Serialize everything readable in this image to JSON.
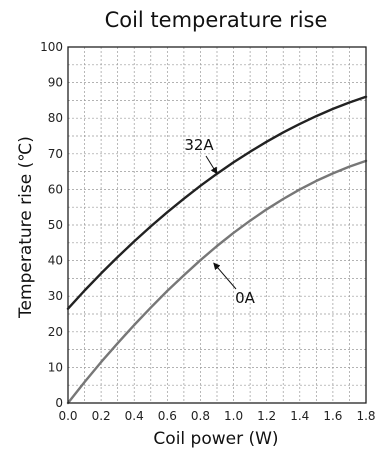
{
  "chart_data": {
    "type": "line",
    "title": "Coil temperature rise",
    "xlabel": "Coil power (W)",
    "ylabel": "Temperature rise (℃)",
    "xlim": [
      0.0,
      1.8
    ],
    "ylim": [
      0,
      100
    ],
    "x_ticks": [
      "0.0",
      "0.2",
      "0.4",
      "0.6",
      "0.8",
      "1.0",
      "1.2",
      "1.4",
      "1.6",
      "1.8"
    ],
    "y_ticks": [
      "0",
      "10",
      "20",
      "30",
      "40",
      "50",
      "60",
      "70",
      "80",
      "90",
      "100"
    ],
    "grid": true,
    "series": [
      {
        "name": "32A",
        "color": "#222222",
        "x": [
          0.0,
          0.1,
          0.2,
          0.3,
          0.4,
          0.5,
          0.6,
          0.7,
          0.8,
          0.9,
          1.0,
          1.1,
          1.2,
          1.3,
          1.4,
          1.5,
          1.6,
          1.7,
          1.8
        ],
        "y": [
          26.5,
          31.6,
          36.4,
          41.0,
          45.4,
          49.6,
          53.6,
          57.4,
          61.0,
          64.4,
          67.6,
          70.6,
          73.4,
          76.0,
          78.4,
          80.6,
          82.6,
          84.4,
          86.0
        ]
      },
      {
        "name": "0A",
        "color": "#777777",
        "x": [
          0.0,
          0.1,
          0.2,
          0.3,
          0.4,
          0.5,
          0.6,
          0.7,
          0.8,
          0.9,
          1.0,
          1.1,
          1.2,
          1.3,
          1.4,
          1.5,
          1.6,
          1.7,
          1.8
        ],
        "y": [
          0.0,
          5.9,
          11.5,
          16.8,
          21.9,
          26.8,
          31.5,
          35.9,
          40.1,
          44.1,
          47.8,
          51.2,
          54.4,
          57.3,
          60.0,
          62.4,
          64.5,
          66.4,
          68.0
        ]
      }
    ],
    "annotations": [
      {
        "text": "32A",
        "series": "32A",
        "x": 0.9,
        "y": 64.4
      },
      {
        "text": "0A",
        "series": "0A",
        "x": 0.88,
        "y": 39.3
      }
    ]
  }
}
